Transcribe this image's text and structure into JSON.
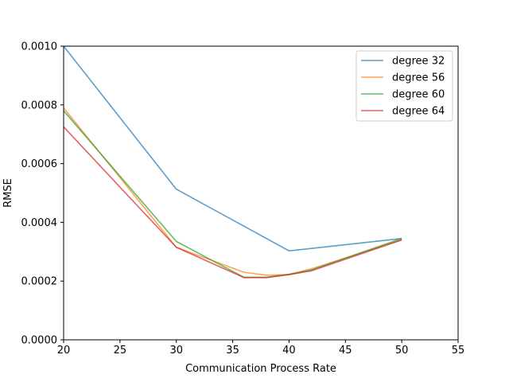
{
  "chart_data": {
    "type": "line",
    "xlabel": "Communication Process Rate",
    "ylabel": "RMSE",
    "xlim": [
      20,
      55
    ],
    "ylim": [
      0,
      0.001
    ],
    "xticks": [
      20,
      25,
      30,
      35,
      40,
      45,
      50,
      55
    ],
    "xtick_labels": [
      "20",
      "25",
      "30",
      "35",
      "40",
      "45",
      "50",
      "55"
    ],
    "yticks": [
      0,
      0.0002,
      0.0004,
      0.0006,
      0.0008,
      0.001
    ],
    "ytick_labels": [
      "0.0000",
      "0.0002",
      "0.0004",
      "0.0006",
      "0.0008",
      "0.0010"
    ],
    "grid": false,
    "legend_position": "top-right",
    "series": [
      {
        "name": "degree 32",
        "color": "#1f77b4",
        "x": [
          20,
          30,
          40,
          50
        ],
        "y": [
          0.001,
          0.000513,
          0.000303,
          0.000345
        ]
      },
      {
        "name": "degree 56",
        "color": "#ff7f0e",
        "x": [
          20,
          30,
          36,
          38,
          40,
          42,
          50
        ],
        "y": [
          0.00079,
          0.000315,
          0.00023,
          0.00022,
          0.000222,
          0.000242,
          0.00034
        ]
      },
      {
        "name": "degree 60",
        "color": "#2ca02c",
        "x": [
          20,
          30,
          36,
          38,
          40,
          42,
          50
        ],
        "y": [
          0.00078,
          0.000335,
          0.000213,
          0.000213,
          0.000223,
          0.000238,
          0.000345
        ]
      },
      {
        "name": "degree 64",
        "color": "#d62728",
        "x": [
          20,
          30,
          36,
          38,
          40,
          42,
          50
        ],
        "y": [
          0.000725,
          0.000315,
          0.000212,
          0.000212,
          0.000222,
          0.000235,
          0.00034
        ]
      }
    ]
  }
}
